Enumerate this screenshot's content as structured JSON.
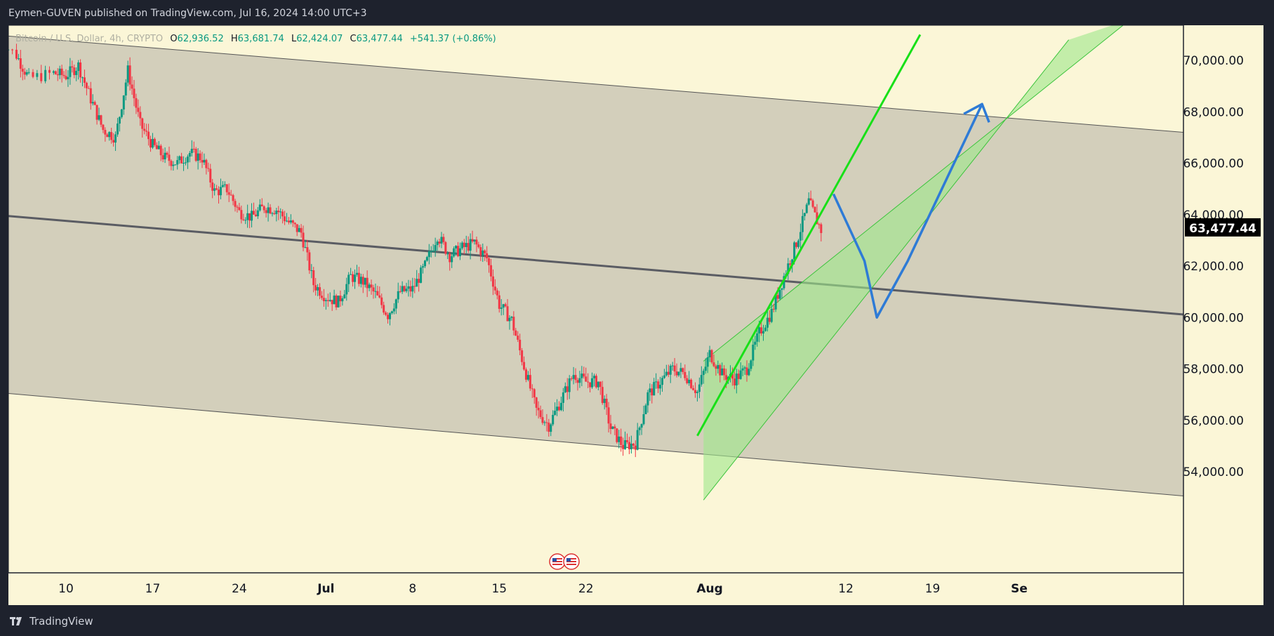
{
  "header": {
    "published_by": "Eymen-GUVEN published on TradingView.com, Jul 16, 2024 14:00 UTC+3"
  },
  "footer": {
    "brand": "TradingView",
    "logo_icon": "tradingview-logo-icon"
  },
  "legend": {
    "symbol": "Bitcoin / U.S. Dollar, 4h, CRYPTO",
    "open_label": "O",
    "open": "62,936.52",
    "high_label": "H",
    "high": "63,681.74",
    "low_label": "L",
    "low": "62,424.07",
    "close_label": "C",
    "close": "63,477.44",
    "change": "+541.37 (+0.86%)"
  },
  "colors": {
    "background": "#fbf6d7",
    "channel_fill": "#d3cfbb",
    "up_candle": "#089981",
    "down_candle": "#f23645",
    "uptrend_fill": "#9ee88a",
    "uptrend_line": "#18e018",
    "projection": "#2e7bd6",
    "midline": "#5a5c63",
    "price_tag": "#000000"
  },
  "chart_data": {
    "type": "candlestick",
    "title": "",
    "symbol": "BTCUSD",
    "timeframe": "4h",
    "ylim": [
      53200,
      71000
    ],
    "x_ticks": [
      "10",
      "17",
      "24",
      "Jul",
      "8",
      "15",
      "22",
      "Aug",
      "12",
      "19",
      "Se"
    ],
    "x_tick_days": [
      10,
      17,
      24,
      31,
      38,
      45,
      52,
      62,
      73,
      80,
      87
    ],
    "y_ticks": [
      70000,
      68000,
      66000,
      64000,
      62000,
      60000,
      58000,
      56000,
      54000
    ],
    "y_tick_labels": [
      "70,000.00",
      "68,000.00",
      "66,000.00",
      "64,000.00",
      "62,000.00",
      "60,000.00",
      "58,000.00",
      "56,000.00",
      "54,000.00"
    ],
    "last_price": 63477.44,
    "last_price_label": "63,477.44",
    "path_points": [
      [
        4,
        71000
      ],
      [
        6,
        70200
      ],
      [
        7,
        69300
      ],
      [
        9,
        69500
      ],
      [
        10,
        69400
      ],
      [
        11,
        69800
      ],
      [
        12,
        68500
      ],
      [
        13,
        67300
      ],
      [
        14,
        67000
      ],
      [
        15,
        69600
      ],
      [
        16,
        67500
      ],
      [
        17,
        66700
      ],
      [
        18,
        66200
      ],
      [
        19,
        66000
      ],
      [
        20,
        66400
      ],
      [
        21,
        66200
      ],
      [
        22,
        64900
      ],
      [
        23,
        65000
      ],
      [
        24,
        64100
      ],
      [
        25,
        63900
      ],
      [
        26,
        64300
      ],
      [
        27,
        64200
      ],
      [
        28,
        63700
      ],
      [
        29,
        63300
      ],
      [
        30,
        61300
      ],
      [
        31,
        60800
      ],
      [
        32,
        60600
      ],
      [
        33,
        61600
      ],
      [
        34,
        61400
      ],
      [
        35,
        60900
      ],
      [
        36,
        60100
      ],
      [
        37,
        61000
      ],
      [
        38,
        61100
      ],
      [
        39,
        62000
      ],
      [
        40,
        63200
      ],
      [
        41,
        62400
      ],
      [
        42,
        62700
      ],
      [
        43,
        62900
      ],
      [
        44,
        62300
      ],
      [
        45,
        60500
      ],
      [
        46,
        59900
      ],
      [
        47,
        58100
      ],
      [
        48,
        56400
      ],
      [
        49,
        55800
      ],
      [
        50,
        56800
      ],
      [
        51,
        57800
      ],
      [
        52,
        57500
      ],
      [
        53,
        57500
      ],
      [
        54,
        55700
      ],
      [
        55,
        55000
      ],
      [
        56,
        55100
      ],
      [
        57,
        57000
      ],
      [
        58,
        57500
      ],
      [
        59,
        58000
      ],
      [
        60,
        57800
      ],
      [
        61,
        57100
      ],
      [
        62,
        58600
      ],
      [
        63,
        57800
      ],
      [
        64,
        57600
      ],
      [
        65,
        58000
      ],
      [
        66,
        59400
      ],
      [
        67,
        60200
      ],
      [
        68,
        61600
      ],
      [
        69,
        62900
      ],
      [
        70,
        64500
      ],
      [
        71,
        63400
      ]
    ],
    "overlays": {
      "descending_channel": {
        "upper": [
          [
            4,
            71000
          ],
          [
            118,
            66500
          ]
        ],
        "lower": [
          [
            4,
            57100
          ],
          [
            104,
            52900
          ]
        ],
        "mid": [
          [
            4,
            64000
          ],
          [
            118,
            59400
          ]
        ]
      },
      "ascending_channel": {
        "upper": [
          [
            61.5,
            58300
          ],
          [
            96,
            71600
          ]
        ],
        "lower": [
          [
            61.5,
            52900
          ],
          [
            91,
            70800
          ]
        ],
        "mid": [
          [
            61,
            55400
          ],
          [
            79,
            71000
          ]
        ]
      },
      "projection_path": [
        [
          72,
          64800
        ],
        [
          74.5,
          62200
        ],
        [
          75.5,
          60000
        ],
        [
          78,
          62200
        ],
        [
          84,
          68300
        ]
      ]
    }
  }
}
